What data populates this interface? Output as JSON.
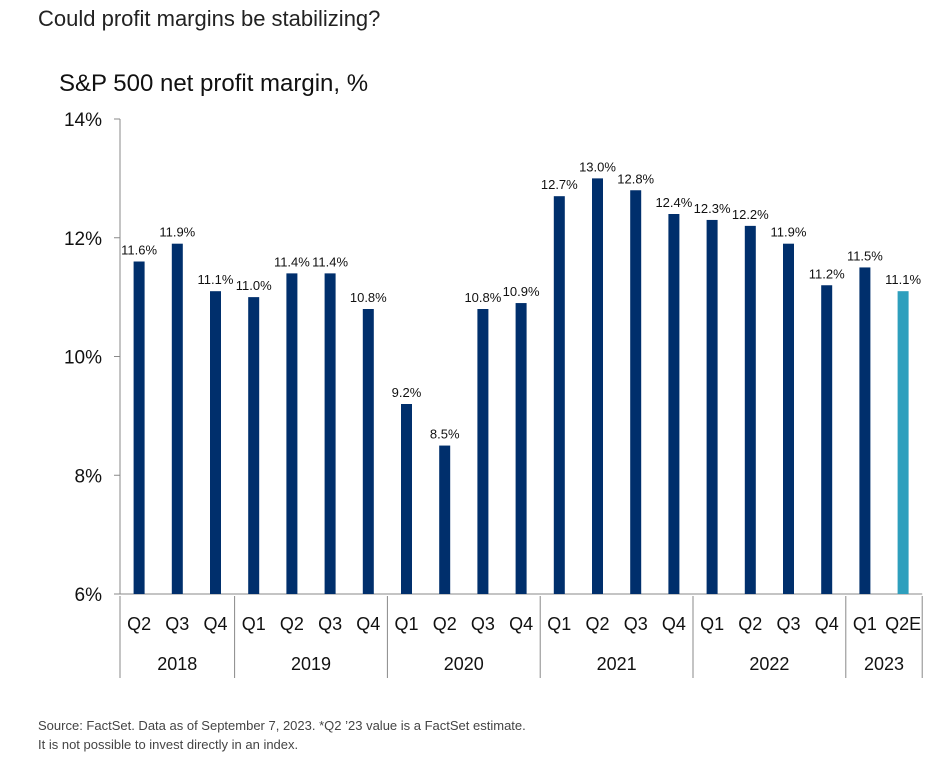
{
  "headline": "Could profit margins be stabilizing?",
  "chart_data": {
    "type": "bar",
    "title": "S&P 500 net profit margin, %",
    "xlabel": "",
    "ylabel": "",
    "ylim": [
      6,
      14
    ],
    "yticks": [
      6,
      8,
      10,
      12,
      14
    ],
    "ytick_labels": [
      "6%",
      "8%",
      "10%",
      "12%",
      "14%"
    ],
    "categories": [
      "Q2",
      "Q3",
      "Q4",
      "Q1",
      "Q2",
      "Q3",
      "Q4",
      "Q1",
      "Q2",
      "Q3",
      "Q4",
      "Q1",
      "Q2",
      "Q3",
      "Q4",
      "Q1",
      "Q2",
      "Q3",
      "Q4",
      "Q1",
      "Q2E"
    ],
    "values": [
      11.6,
      11.9,
      11.1,
      11.0,
      11.4,
      11.4,
      10.8,
      9.2,
      8.5,
      10.8,
      10.9,
      12.7,
      13.0,
      12.8,
      12.4,
      12.3,
      12.2,
      11.9,
      11.2,
      11.5,
      11.1
    ],
    "data_labels": [
      "11.6%",
      "11.9%",
      "11.1%",
      "11.0%",
      "11.4%",
      "11.4%",
      "10.8%",
      "9.2%",
      "8.5%",
      "10.8%",
      "10.9%",
      "12.7%",
      "13.0%",
      "12.8%",
      "12.4%",
      "12.3%",
      "12.2%",
      "11.9%",
      "11.2%",
      "11.5%",
      "11.1%"
    ],
    "estimate": [
      false,
      false,
      false,
      false,
      false,
      false,
      false,
      false,
      false,
      false,
      false,
      false,
      false,
      false,
      false,
      false,
      false,
      false,
      false,
      false,
      true
    ],
    "year_groups": [
      {
        "label": "2018",
        "count": 3
      },
      {
        "label": "2019",
        "count": 4
      },
      {
        "label": "2020",
        "count": 4
      },
      {
        "label": "2021",
        "count": 4
      },
      {
        "label": "2022",
        "count": 4
      },
      {
        "label": "2023",
        "count": 2
      }
    ],
    "grid": false,
    "legend": "none",
    "colors": {
      "actual": "#002f6c",
      "estimate": "#2e9fbd",
      "axis": "#888888"
    }
  },
  "footnote": {
    "line1": "Source: FactSet. Data as of September 7, 2023. *Q2 ’23 value is a FactSet estimate.",
    "line2": "It is not possible to invest directly in an index."
  }
}
